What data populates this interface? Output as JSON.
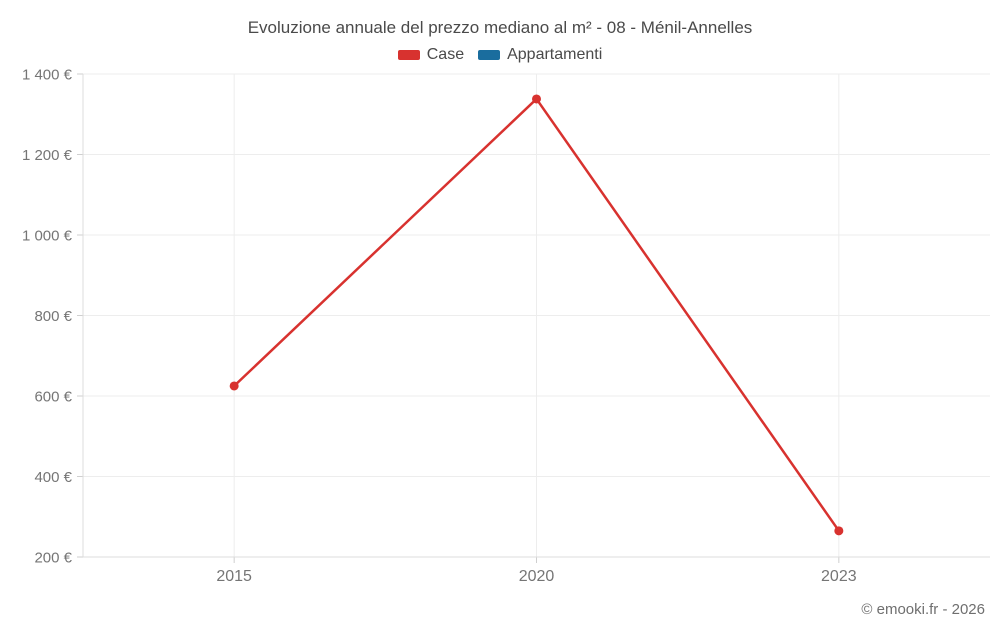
{
  "header": {
    "title": "Evoluzione annuale del prezzo mediano al m² - 08 - Ménil-Annelles"
  },
  "legend": {
    "items": [
      {
        "label": "Case",
        "color": "#d8322f"
      },
      {
        "label": "Appartamenti",
        "color": "#1a6d9e"
      }
    ]
  },
  "footer": {
    "credit": "© emooki.fr - 2026"
  },
  "chart_data": {
    "type": "line",
    "title": "Evoluzione annuale del prezzo mediano al m² - 08 - Ménil-Annelles",
    "categories": [
      "2015",
      "2020",
      "2023"
    ],
    "series": [
      {
        "name": "Case",
        "color": "#d8322f",
        "values": [
          625,
          1338,
          265
        ]
      },
      {
        "name": "Appartamenti",
        "color": "#1a6d9e",
        "values": [
          null,
          null,
          null
        ]
      }
    ],
    "xlabel": "",
    "ylabel": "",
    "ylim": [
      200,
      1400
    ],
    "yticks": [
      200,
      400,
      600,
      800,
      1000,
      1200,
      1400
    ],
    "ytick_labels": [
      "200 €",
      "400 €",
      "600 €",
      "800 €",
      "1 000 €",
      "1 200 €",
      "1 400 €"
    ],
    "currency_suffix": " €",
    "grid": true,
    "legend_position": "top",
    "colors": {
      "grid": "#ededed",
      "axis": "#dcdcdc",
      "tick": "#cfcfcf",
      "tick_text": "#757575",
      "title_text": "#4a4a4a",
      "background": "#ffffff"
    }
  }
}
